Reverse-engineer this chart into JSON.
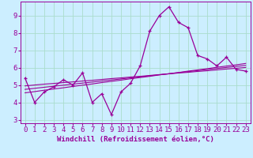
{
  "xlabel": "Windchill (Refroidissement éolien,°C)",
  "bg_color": "#cceeff",
  "grid_color": "#aaddcc",
  "line_color": "#990099",
  "x_values": [
    0,
    1,
    2,
    3,
    4,
    5,
    6,
    7,
    8,
    9,
    10,
    11,
    12,
    13,
    14,
    15,
    16,
    17,
    18,
    19,
    20,
    21,
    22,
    23
  ],
  "main_line": [
    5.4,
    4.0,
    4.6,
    4.9,
    5.3,
    5.0,
    5.7,
    4.0,
    4.5,
    3.3,
    4.6,
    5.1,
    6.1,
    8.1,
    9.0,
    9.5,
    8.6,
    8.3,
    6.7,
    6.5,
    6.1,
    6.6,
    5.9,
    5.8
  ],
  "trend_line1": [
    4.55,
    4.62,
    4.7,
    4.77,
    4.84,
    4.92,
    4.99,
    5.06,
    5.14,
    5.21,
    5.28,
    5.36,
    5.43,
    5.5,
    5.58,
    5.65,
    5.72,
    5.8,
    5.87,
    5.94,
    6.02,
    6.09,
    6.16,
    6.24
  ],
  "trend_line2": [
    4.75,
    4.81,
    4.87,
    4.93,
    4.99,
    5.05,
    5.11,
    5.17,
    5.23,
    5.29,
    5.35,
    5.41,
    5.47,
    5.53,
    5.59,
    5.65,
    5.71,
    5.77,
    5.83,
    5.89,
    5.95,
    6.01,
    6.07,
    6.13
  ],
  "trend_line3": [
    4.95,
    5.0,
    5.05,
    5.09,
    5.14,
    5.18,
    5.23,
    5.27,
    5.32,
    5.37,
    5.41,
    5.46,
    5.5,
    5.55,
    5.6,
    5.64,
    5.69,
    5.73,
    5.78,
    5.82,
    5.87,
    5.92,
    5.96,
    6.01
  ],
  "ylim": [
    2.8,
    9.8
  ],
  "xlim": [
    -0.5,
    23.5
  ],
  "yticks": [
    3,
    4,
    5,
    6,
    7,
    8,
    9
  ],
  "xticks": [
    0,
    1,
    2,
    3,
    4,
    5,
    6,
    7,
    8,
    9,
    10,
    11,
    12,
    13,
    14,
    15,
    16,
    17,
    18,
    19,
    20,
    21,
    22,
    23
  ],
  "tick_fontsize": 6.5,
  "xlabel_fontsize": 6.5
}
